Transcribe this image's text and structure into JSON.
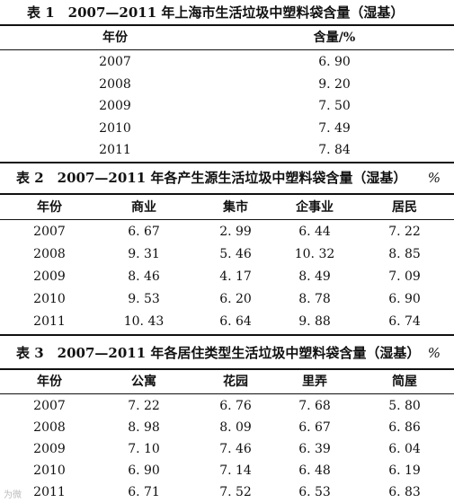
{
  "table1": {
    "caption": "表 1　2007—2011 年上海市生活垃圾中塑料袋含量（湿基）",
    "headers": [
      "年份",
      "含量/%"
    ],
    "rows": [
      [
        "2007",
        "6. 90"
      ],
      [
        "2008",
        "9. 20"
      ],
      [
        "2009",
        "7. 50"
      ],
      [
        "2010",
        "7. 49"
      ],
      [
        "2011",
        "7. 84"
      ]
    ]
  },
  "table2": {
    "caption": "表 2　2007—2011 年各产生源生活垃圾中塑料袋含量（湿基）",
    "unit": "%",
    "headers": [
      "年份",
      "商业",
      "集市",
      "企事业",
      "居民"
    ],
    "rows": [
      [
        "2007",
        "6. 67",
        "2. 99",
        "6. 44",
        "7. 22"
      ],
      [
        "2008",
        "9. 31",
        "5. 46",
        "10. 32",
        "8. 85"
      ],
      [
        "2009",
        "8. 46",
        "4. 17",
        "8. 49",
        "7. 09"
      ],
      [
        "2010",
        "9. 53",
        "6. 20",
        "8. 78",
        "6. 90"
      ],
      [
        "2011",
        "10. 43",
        "6. 64",
        "9. 88",
        "6. 74"
      ]
    ]
  },
  "table3": {
    "caption": "表 3　2007—2011 年各居住类型生活垃圾中塑料袋含量（湿基）",
    "unit": "%",
    "headers": [
      "年份",
      "公寓",
      "花园",
      "里弄",
      "简屋"
    ],
    "rows": [
      [
        "2007",
        "7. 22",
        "6. 76",
        "7. 68",
        "5. 80"
      ],
      [
        "2008",
        "8. 98",
        "8. 09",
        "6. 67",
        "6. 86"
      ],
      [
        "2009",
        "7. 10",
        "7. 46",
        "6. 39",
        "6. 04"
      ],
      [
        "2010",
        "6. 90",
        "7. 14",
        "6. 48",
        "6. 19"
      ],
      [
        "2011",
        "6. 71",
        "7. 52",
        "6. 53",
        "6. 83"
      ]
    ]
  },
  "watermark": "为微"
}
